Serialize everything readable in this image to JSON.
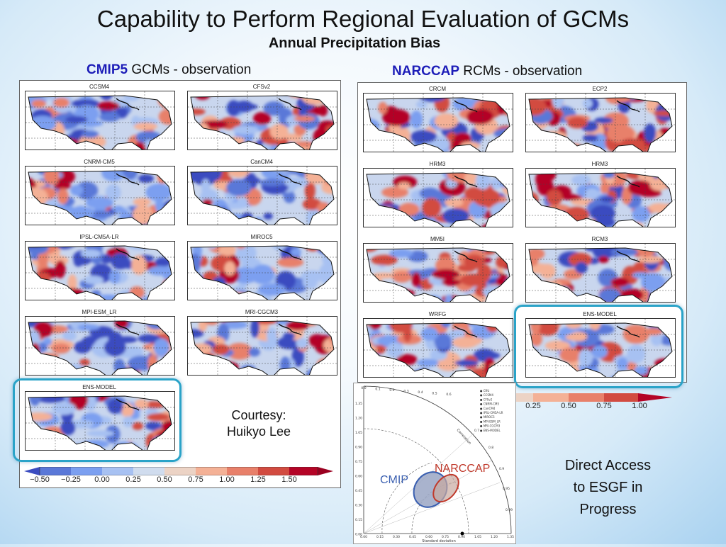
{
  "slide": {
    "title": "Capability to Perform Regional Evaluation of GCMs",
    "subtitle": "Annual Precipitation Bias"
  },
  "left": {
    "heading_bold": "CMIP5",
    "heading_rest": " GCMs  - observation",
    "maps": [
      "CCSM4",
      "CFSv2",
      "CNRM-CM5",
      "CanCM4",
      "IPSL-CM5A-LR",
      "MIROC5",
      "MPI-ESM_LR",
      "MRI-CGCM3",
      "ENS-MODEL"
    ],
    "colorbar_ticks": [
      "−0.50",
      "−0.25",
      "0.00",
      "0.25",
      "0.50",
      "0.75",
      "1.00",
      "1.25",
      "1.50"
    ]
  },
  "right": {
    "heading_bold": "NARCCAP",
    "heading_rest": " RCMs - observation",
    "maps": [
      "CRCM",
      "ECP2",
      "HRM3",
      "HRM3",
      "MM5I",
      "RCM3",
      "WRFG",
      "ENS-MODEL"
    ],
    "colorbar_ticks": [
      "0.25",
      "0.50",
      "0.75",
      "1.00"
    ]
  },
  "courtesy": {
    "line1": "Courtesy:",
    "line2": "Huikyo Lee"
  },
  "access": {
    "line1": "Direct Access",
    "line2": "to ESGF in",
    "line3": "Progress"
  },
  "taylor": {
    "cmip_label": "CMIP",
    "narccap_label": "NARCCAP",
    "xlabel": "Standard deviation",
    "legend": [
      "CRU",
      "CCSM4",
      "CFSv2",
      "CNRM-CM5",
      "CanCM4",
      "IPSL-CM5A-LR",
      "MIROC5",
      "MPI-ESM_LR",
      "MRI-CGCM3",
      "ENS-MODEL"
    ],
    "x_ticks": [
      "0.00",
      "0.15",
      "0.30",
      "0.45",
      "0.60",
      "0.75",
      "0.90",
      "1.05",
      "1.20",
      "1.35"
    ],
    "y_ticks": [
      "1.35",
      "1.20",
      "1.05",
      "0.90",
      "0.75",
      "0.60",
      "0.45",
      "0.30",
      "0.15",
      "0.00"
    ],
    "top_ticks": [
      "0.0",
      "0.1",
      "0.2",
      "0.3",
      "0.4",
      "0.5",
      "0.6"
    ],
    "arc_ticks": [
      "0.7",
      "0.8",
      "0.9",
      "0.95",
      "0.99"
    ],
    "correlation_label": "Correlation",
    "cmip_color": "#3a5fb0",
    "narccap_color": "#c0392b"
  }
}
